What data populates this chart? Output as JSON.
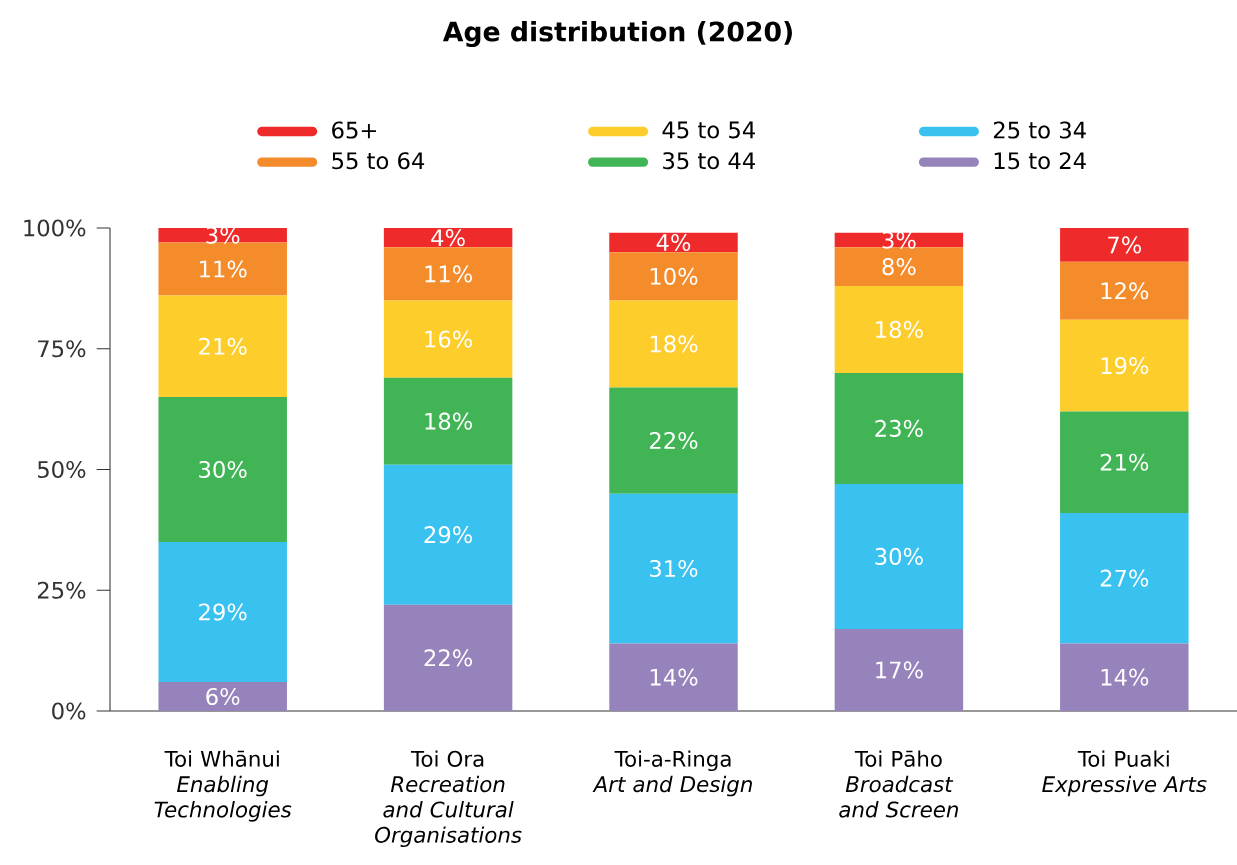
{
  "chart_data": {
    "type": "bar",
    "stacked": true,
    "title": "Age distribution (2020)",
    "categories": [
      "Toi Whānui\n*Enabling Technologies*",
      "Toi Ora\n*Recreation and Cultural Organisations*",
      "Toi-a-Ringa\n*Art and Design*",
      "Toi Pāho\n*Broadcast and Screen*",
      "Toi Puaki\n*Expressive Arts*"
    ],
    "series": [
      {
        "name": "15 to 24",
        "color": "#9683bc",
        "values": [
          6,
          22,
          14,
          17,
          14
        ],
        "value_labels": [
          "6%",
          "22%",
          "14%",
          "17%",
          "14%"
        ]
      },
      {
        "name": "25 to 34",
        "color": "#39c1ef",
        "values": [
          29,
          29,
          31,
          30,
          27
        ],
        "value_labels": [
          "29%",
          "29%",
          "31%",
          "30%",
          "27%"
        ]
      },
      {
        "name": "35 to 44",
        "color": "#41b556",
        "values": [
          30,
          18,
          22,
          23,
          21
        ],
        "value_labels": [
          "30%",
          "18%",
          "22%",
          "23%",
          "21%"
        ]
      },
      {
        "name": "45 to 54",
        "color": "#fdcd2c",
        "values": [
          21,
          16,
          18,
          18,
          19
        ],
        "value_labels": [
          "21%",
          "16%",
          "18%",
          "18%",
          "19%"
        ]
      },
      {
        "name": "55 to 64",
        "color": "#f58c2c",
        "values": [
          11,
          11,
          10,
          8,
          12
        ],
        "value_labels": [
          "11%",
          "11%",
          "10%",
          "8%",
          "12%"
        ]
      },
      {
        "name": "65+",
        "color": "#ee2a2b",
        "values": [
          3,
          4,
          4,
          3,
          7
        ],
        "value_labels": [
          "3%",
          "4%",
          "4%",
          "3%",
          "7%"
        ]
      }
    ],
    "ylim": [
      0,
      100
    ],
    "yticks": [
      {
        "value": 0,
        "label": "0%"
      },
      {
        "value": 25,
        "label": "25%"
      },
      {
        "value": 50,
        "label": "50%"
      },
      {
        "value": 75,
        "label": "75%"
      },
      {
        "value": 100,
        "label": "100%"
      }
    ],
    "legend": "top",
    "grid": false
  }
}
